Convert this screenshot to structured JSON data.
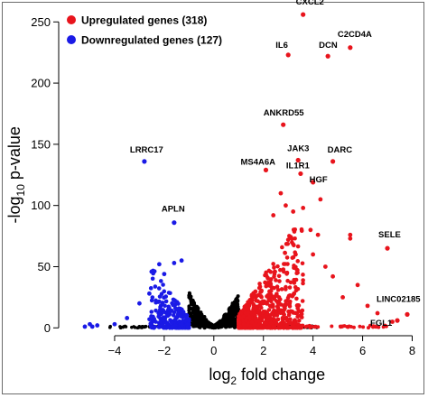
{
  "chart_data": {
    "type": "scatter",
    "title": "",
    "xlabel": "log2 fold change",
    "ylabel": "-log10 p-value",
    "xlim": [
      -5.6,
      8.2
    ],
    "ylim": [
      -2,
      262
    ],
    "xticks": [
      -4,
      -2,
      0,
      2,
      4,
      6,
      8
    ],
    "yticks": [
      0,
      50,
      100,
      150,
      200,
      250
    ],
    "grid": false,
    "legend_position": "top-left",
    "colors": {
      "upregulated": "#e8141c",
      "downregulated": "#1a1ae6",
      "not_significant": "#000000"
    },
    "series": [
      {
        "name": "Upregulated genes (318)",
        "count": 318,
        "color": "#e8141c"
      },
      {
        "name": "Downregulated genes (127)",
        "count": 127,
        "color": "#1a1ae6"
      }
    ],
    "labeled_points": [
      {
        "gene": "CXCL2",
        "x": 3.6,
        "y": 256,
        "group": "up"
      },
      {
        "gene": "C2CD4A",
        "x": 5.5,
        "y": 229,
        "group": "up"
      },
      {
        "gene": "IL6",
        "x": 3.0,
        "y": 223,
        "group": "up"
      },
      {
        "gene": "DCN",
        "x": 4.6,
        "y": 222,
        "group": "up"
      },
      {
        "gene": "ANKRD55",
        "x": 2.8,
        "y": 166,
        "group": "up"
      },
      {
        "gene": "DARC",
        "x": 4.8,
        "y": 136,
        "group": "up"
      },
      {
        "gene": "JAK3",
        "x": 3.4,
        "y": 137,
        "group": "up"
      },
      {
        "gene": "MS4A6A",
        "x": 2.1,
        "y": 129,
        "group": "up"
      },
      {
        "gene": "IL1R1",
        "x": 3.5,
        "y": 126,
        "group": "up"
      },
      {
        "gene": "HGF",
        "x": 4.0,
        "y": 119,
        "group": "up"
      },
      {
        "gene": "SELE",
        "x": 7.0,
        "y": 65,
        "group": "up"
      },
      {
        "gene": "LINC02185",
        "x": 7.8,
        "y": 11,
        "group": "up"
      },
      {
        "gene": "FGL1",
        "x": 7.4,
        "y": 6,
        "group": "up"
      },
      {
        "gene": "LRRC17",
        "x": -2.8,
        "y": 136,
        "group": "down"
      },
      {
        "gene": "APLN",
        "x": -1.6,
        "y": 86,
        "group": "down"
      }
    ],
    "extra_points": [
      {
        "x": 5.5,
        "y": 76,
        "group": "up"
      },
      {
        "x": 5.5,
        "y": 73,
        "group": "up"
      },
      {
        "x": 4.3,
        "y": 105,
        "group": "up"
      },
      {
        "x": 3.9,
        "y": 80,
        "group": "up"
      },
      {
        "x": 4.2,
        "y": 76,
        "group": "up"
      },
      {
        "x": 4.0,
        "y": 60,
        "group": "up"
      },
      {
        "x": 3.2,
        "y": 95,
        "group": "up"
      },
      {
        "x": 2.9,
        "y": 100,
        "group": "up"
      },
      {
        "x": 3.0,
        "y": 72,
        "group": "up"
      },
      {
        "x": 4.5,
        "y": 50,
        "group": "up"
      },
      {
        "x": 4.8,
        "y": 42,
        "group": "up"
      },
      {
        "x": 5.8,
        "y": 35,
        "group": "up"
      },
      {
        "x": 6.2,
        "y": 18,
        "group": "up"
      },
      {
        "x": 6.6,
        "y": 12,
        "group": "up"
      },
      {
        "x": 7.2,
        "y": 5,
        "group": "up"
      },
      {
        "x": 5.2,
        "y": 25,
        "group": "up"
      },
      {
        "x": 3.6,
        "y": 98,
        "group": "up"
      },
      {
        "x": 2.7,
        "y": 110,
        "group": "up"
      },
      {
        "x": 2.4,
        "y": 92,
        "group": "up"
      },
      {
        "x": 3.3,
        "y": 60,
        "group": "up"
      },
      {
        "x": -1.6,
        "y": 53,
        "group": "down"
      },
      {
        "x": -2.2,
        "y": 52,
        "group": "down"
      },
      {
        "x": -1.3,
        "y": 55,
        "group": "down"
      },
      {
        "x": -2.0,
        "y": 44,
        "group": "down"
      },
      {
        "x": -2.6,
        "y": 28,
        "group": "down"
      },
      {
        "x": -3.0,
        "y": 20,
        "group": "down"
      },
      {
        "x": -3.5,
        "y": 8,
        "group": "down"
      },
      {
        "x": -4.0,
        "y": 3,
        "group": "down"
      },
      {
        "x": -4.7,
        "y": 2,
        "group": "down"
      },
      {
        "x": -5.0,
        "y": 3,
        "group": "down"
      },
      {
        "x": -5.2,
        "y": 1,
        "group": "down"
      },
      {
        "x": -4.9,
        "y": 1,
        "group": "down"
      }
    ],
    "cloud": {
      "ns_x_range": [
        -1,
        1
      ],
      "fold_threshold": 1,
      "down_count": 127,
      "up_count": 318
    }
  }
}
